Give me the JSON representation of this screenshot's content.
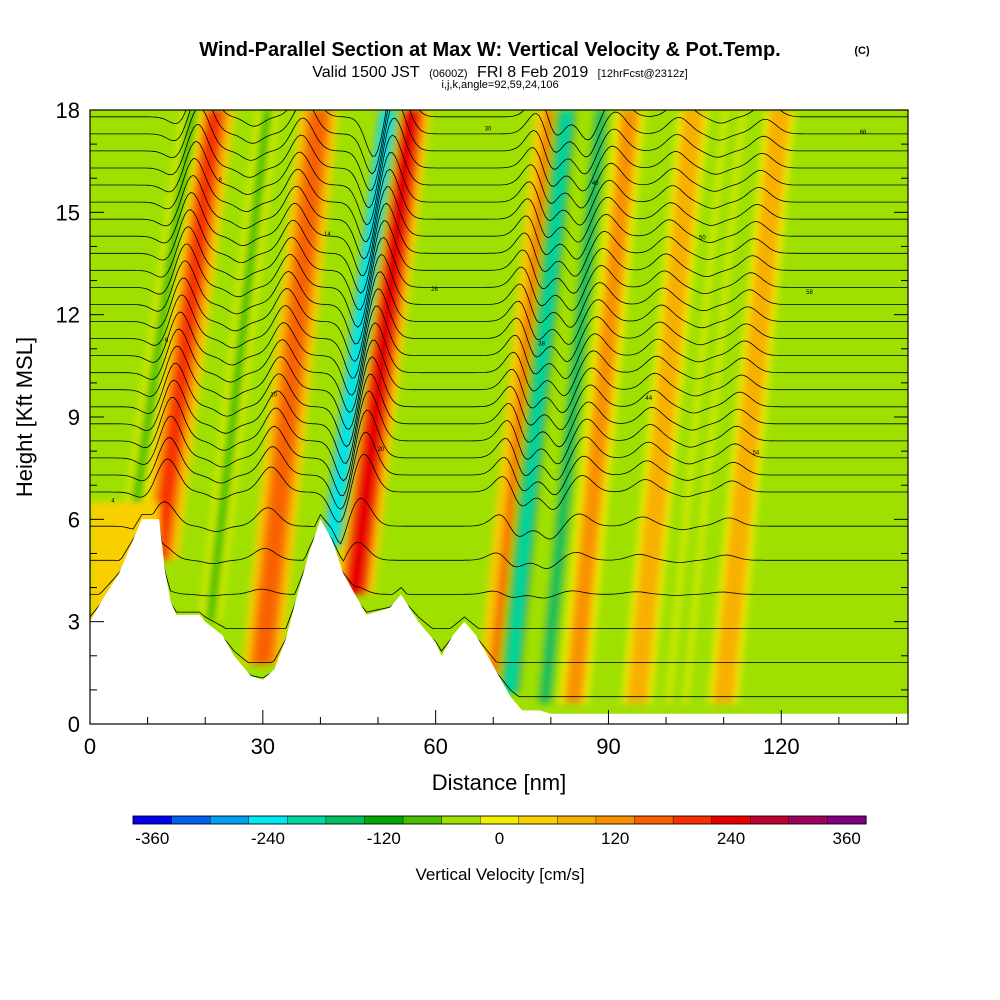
{
  "chart_data": {
    "type": "heatmap",
    "title": "Wind-Parallel Section at Max W: Vertical Velocity & Pot.Temp.",
    "copyright": "(C)",
    "subtitle": {
      "valid": "Valid 1500 JST",
      "utc": "(0600Z)",
      "date": "FRI 8 Feb 2019",
      "forecast": "[12hrFcst@2312z]"
    },
    "indices_line": "i,j,k,angle=92,59,24,106",
    "xlabel": "Distance [nm]",
    "ylabel": "Height [Kft MSL]",
    "xlim": [
      0,
      142
    ],
    "ylim": [
      0,
      18
    ],
    "x_ticks": [
      "0",
      "30",
      "60",
      "90",
      "120"
    ],
    "y_ticks": [
      "0",
      "3",
      "6",
      "9",
      "12",
      "15",
      "18"
    ],
    "grid": false,
    "colorbar": {
      "label": "Vertical Velocity [cm/s]",
      "range": [
        -380,
        380
      ],
      "step": 40,
      "tick_labels": [
        "-360",
        "-240",
        "-120",
        "0",
        "120",
        "240",
        "360"
      ],
      "colors": [
        "#0000ee",
        "#0060f0",
        "#00a0f0",
        "#00e8f0",
        "#00d8a0",
        "#00c060",
        "#00a800",
        "#48c000",
        "#a0e000",
        "#f0f000",
        "#f8d000",
        "#f8b000",
        "#f89000",
        "#f86000",
        "#f83000",
        "#e80000",
        "#c00030",
        "#a00060",
        "#800080"
      ]
    },
    "updrafts": [
      {
        "x": 13,
        "w_max": 240
      },
      {
        "x": 31,
        "w_max": 180
      },
      {
        "x": 47,
        "w_max": 280
      },
      {
        "x": 72,
        "w_max": 160
      },
      {
        "x": 85,
        "w_max": 120
      },
      {
        "x": 96,
        "w_max": 90
      },
      {
        "x": 111,
        "w_max": 80
      }
    ],
    "downdrafts": [
      {
        "x": 9,
        "w_min": -60
      },
      {
        "x": 22,
        "w_min": -60
      },
      {
        "x": 43,
        "w_min": -280
      },
      {
        "x": 74,
        "w_min": -200
      },
      {
        "x": 80,
        "w_min": -150
      },
      {
        "x": 103,
        "w_min": -40
      }
    ],
    "terrain": [
      [
        0,
        3.0
      ],
      [
        2,
        3.6
      ],
      [
        5,
        4.4
      ],
      [
        7,
        5.2
      ],
      [
        9,
        6.0
      ],
      [
        12,
        6.0
      ],
      [
        13,
        4.5
      ],
      [
        14,
        3.6
      ],
      [
        15,
        3.2
      ],
      [
        19,
        3.2
      ],
      [
        20,
        3.0
      ],
      [
        23,
        2.6
      ],
      [
        25,
        2.0
      ],
      [
        28,
        1.4
      ],
      [
        30,
        1.3
      ],
      [
        32,
        1.6
      ],
      [
        34,
        2.5
      ],
      [
        36,
        3.8
      ],
      [
        38,
        5.0
      ],
      [
        40,
        6.0
      ],
      [
        42,
        5.4
      ],
      [
        44,
        4.4
      ],
      [
        46,
        3.8
      ],
      [
        48,
        3.2
      ],
      [
        52,
        3.4
      ],
      [
        54,
        3.8
      ],
      [
        57,
        3.0
      ],
      [
        60,
        2.4
      ],
      [
        61,
        2.0
      ],
      [
        63,
        2.6
      ],
      [
        65,
        3.0
      ],
      [
        67,
        2.6
      ],
      [
        69,
        2.0
      ],
      [
        71,
        1.4
      ],
      [
        73,
        0.8
      ],
      [
        75,
        0.4
      ],
      [
        78,
        0.4
      ],
      [
        80,
        0.3
      ],
      [
        142,
        0.3
      ]
    ],
    "theta_labels": [
      "4",
      "6",
      "8",
      "10",
      "14",
      "20",
      "26",
      "30",
      "38",
      "40",
      "44",
      "50",
      "54",
      "58",
      "66"
    ]
  }
}
